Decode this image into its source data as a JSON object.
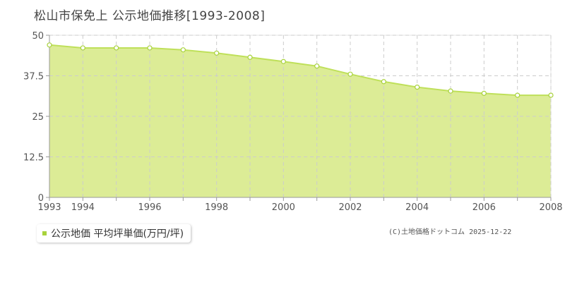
{
  "title": "松山市保免上 公示地価推移[1993-2008]",
  "legend": {
    "label": "公示地価 平均坪単価(万円/坪)"
  },
  "copyright": "(C)土地価格ドットコム 2025-12-22",
  "colors": {
    "area_fill": "#dcec96",
    "line": "#bfe05a",
    "marker_fill": "#ffffff",
    "marker_stroke": "#a8d23c",
    "grid": "#cccccc",
    "axis": "#999999"
  },
  "chart_data": {
    "type": "area",
    "title": "松山市保免上 公示地価推移[1993-2008]",
    "xlabel": "",
    "ylabel": "",
    "x": [
      1993,
      1994,
      1995,
      1996,
      1997,
      1998,
      1999,
      2000,
      2001,
      2002,
      2003,
      2004,
      2005,
      2006,
      2007,
      2008
    ],
    "xticks": [
      "1993",
      "1994",
      "1996",
      "1998",
      "2000",
      "2002",
      "2004",
      "2006",
      "2008"
    ],
    "yticks": [
      "0",
      "12.5",
      "25",
      "37.5",
      "50"
    ],
    "ylim": [
      0,
      50
    ],
    "xlim": [
      1993,
      2008
    ],
    "grid": true,
    "legend_position": "bottom-left",
    "series": [
      {
        "name": "公示地価 平均坪単価(万円/坪)",
        "values": [
          47.0,
          46.1,
          46.1,
          46.1,
          45.5,
          44.5,
          43.2,
          41.9,
          40.5,
          38.0,
          35.7,
          34.0,
          32.8,
          32.1,
          31.5,
          31.5
        ]
      }
    ]
  }
}
